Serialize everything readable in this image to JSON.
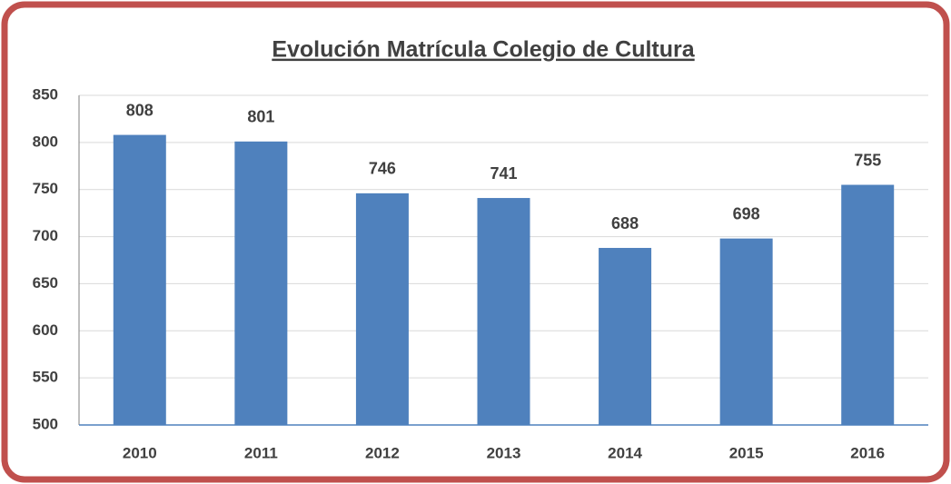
{
  "chart_data": {
    "type": "bar",
    "title": "Evolución Matrícula Colegio de Cultura",
    "categories": [
      "2010",
      "2011",
      "2012",
      "2013",
      "2014",
      "2015",
      "2016"
    ],
    "values": [
      808,
      801,
      746,
      741,
      688,
      698,
      755
    ],
    "color": "#4f81bd",
    "ylim": [
      500,
      850
    ],
    "yticks": [
      500,
      550,
      600,
      650,
      700,
      750,
      800,
      850
    ],
    "grid": true
  }
}
